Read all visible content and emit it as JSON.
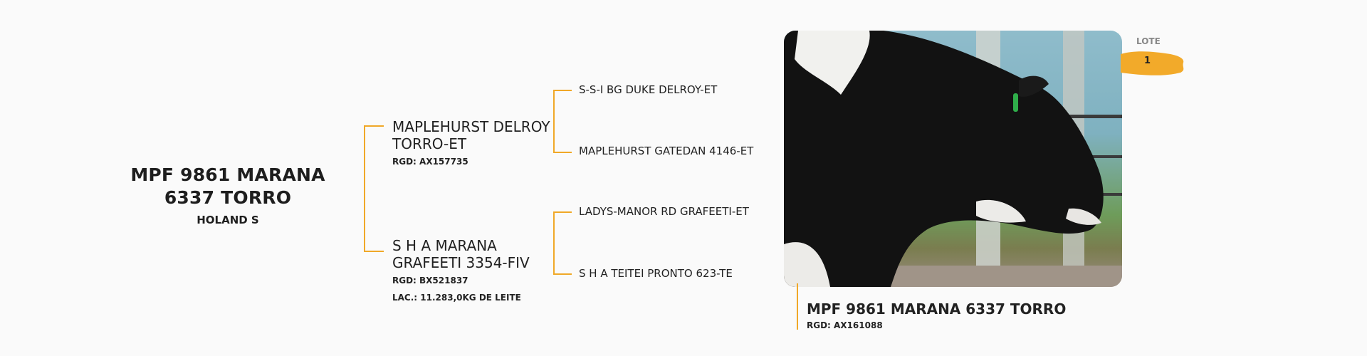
{
  "animal": {
    "name_line1": "MPF 9861 MARANA",
    "name_line2": "6337 TORRO",
    "breed": "HOLAND S"
  },
  "sire": {
    "name_line1": "MAPLEHURST DELROY",
    "name_line2": "TORRO-ET",
    "rgd": "RGD: AX157735",
    "sire": "S-S-I BG DUKE DELROY-ET",
    "dam": "MAPLEHURST GATEDAN 4146-ET"
  },
  "dam": {
    "name_line1": "S H A MARANA",
    "name_line2": "GRAFEETI 3354-FIV",
    "rgd": "RGD: BX521837",
    "lac": "LAC.: 11.283,0KG DE LEITE",
    "sire": "LADYS-MANOR RD GRAFEETI-ET",
    "dam": "S H A TEITEI PRONTO 623-TE"
  },
  "lote": {
    "label": "LOTE",
    "number": "1"
  },
  "photo_caption": {
    "name": "MPF 9861 MARANA 6337 TORRO",
    "rgd": "RGD: AX161088"
  },
  "colors": {
    "accent": "#f0a828",
    "text": "#222222",
    "background": "#fafafa"
  }
}
